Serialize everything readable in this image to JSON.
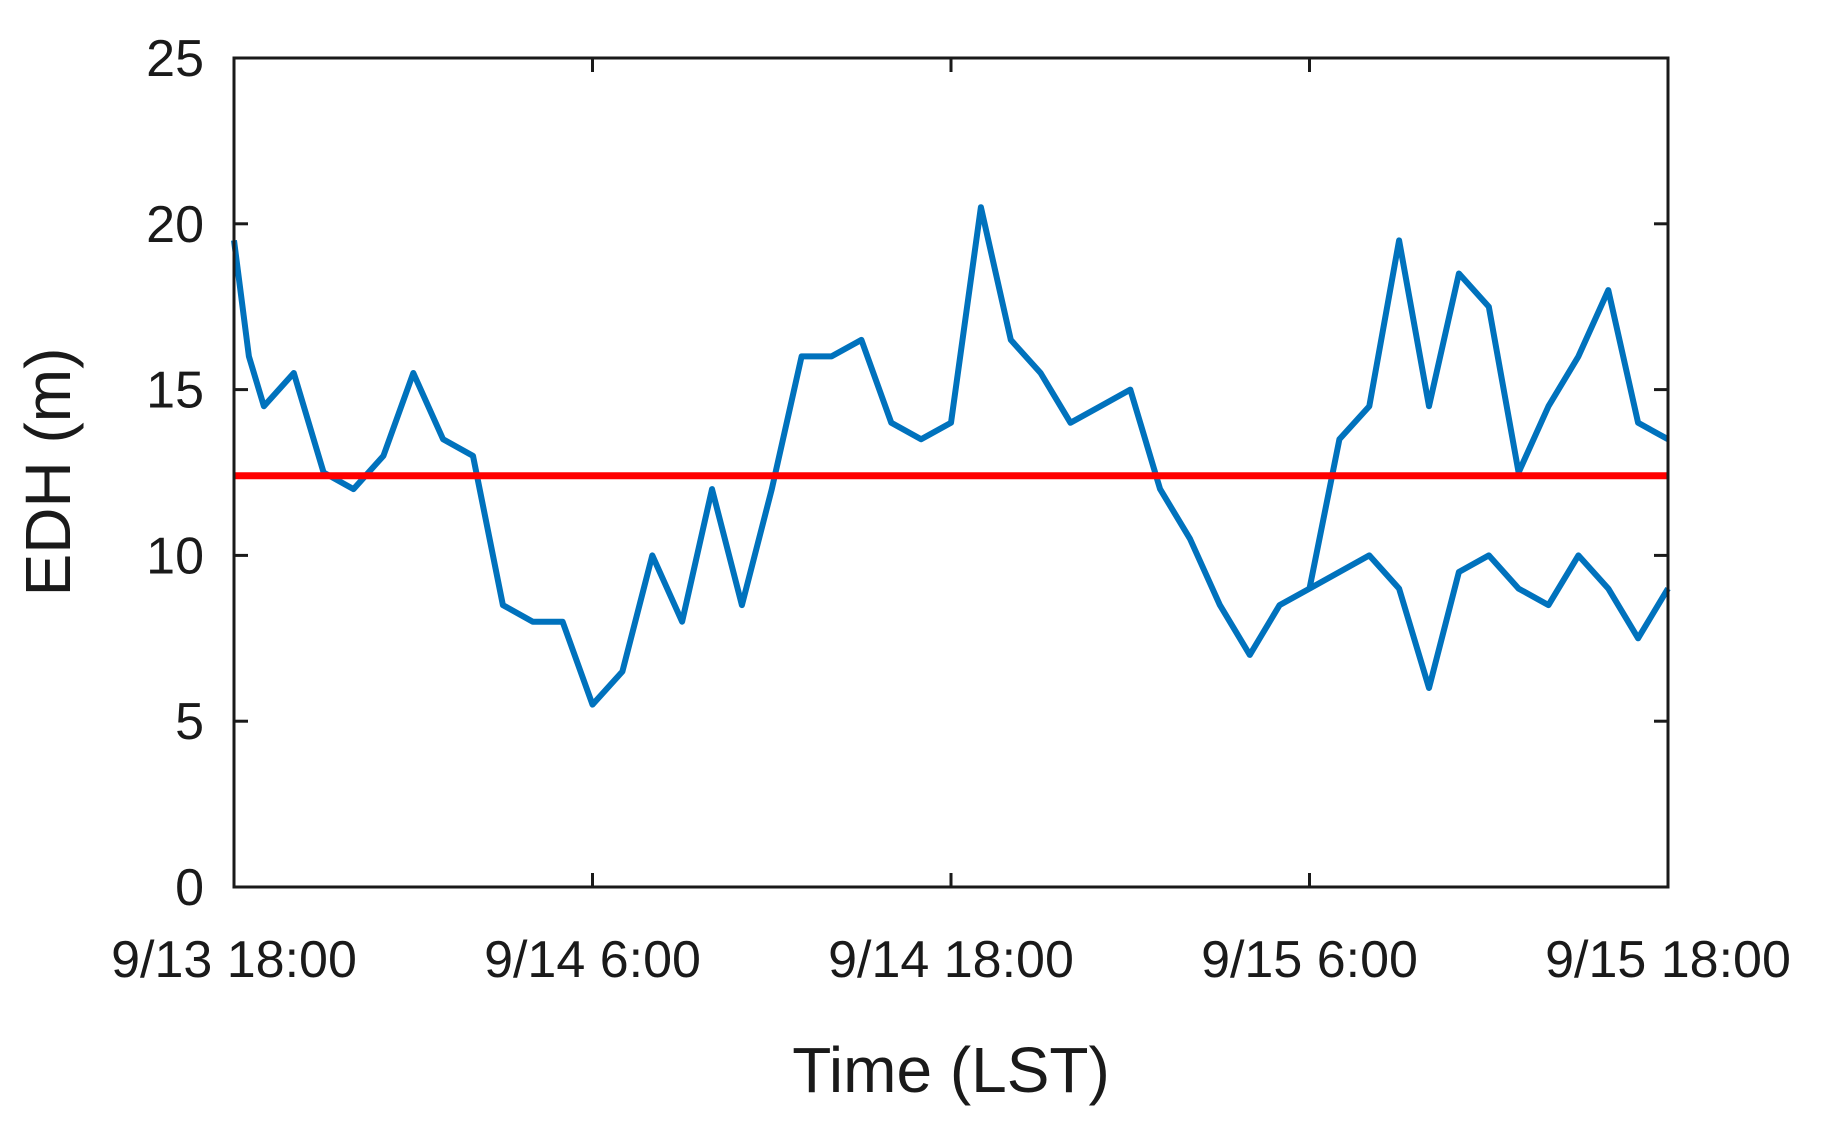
{
  "chart_data": {
    "type": "line",
    "title": "",
    "xlabel": "Time (LST)",
    "ylabel": "EDH (m)",
    "x_type": "datetime",
    "xlim": [
      "2015-09-13 18:00",
      "2015-09-15 18:00"
    ],
    "ylim": [
      0,
      25
    ],
    "x_ticks": [
      {
        "value": "2015-09-13 18:00",
        "label": "9/13 18:00"
      },
      {
        "value": "2015-09-14 06:00",
        "label": "9/14 6:00"
      },
      {
        "value": "2015-09-14 18:00",
        "label": "9/14 18:00"
      },
      {
        "value": "2015-09-15 06:00",
        "label": "9/15 6:00"
      },
      {
        "value": "2015-09-15 18:00",
        "label": "9/15 18:00"
      }
    ],
    "y_ticks": [
      0,
      5,
      10,
      15,
      20,
      25
    ],
    "grid": false,
    "legend": "none",
    "series": [
      {
        "color": "#0072BD",
        "x": [
          "2015-09-13 18:00",
          "2015-09-13 18:30",
          "2015-09-13 19:00",
          "2015-09-13 20:00",
          "2015-09-13 21:00",
          "2015-09-13 22:00",
          "2015-09-13 23:00",
          "2015-09-14 00:00",
          "2015-09-14 01:00",
          "2015-09-14 02:00",
          "2015-09-14 03:00",
          "2015-09-14 04:00",
          "2015-09-14 05:00",
          "2015-09-14 06:00",
          "2015-09-14 07:00",
          "2015-09-14 08:00",
          "2015-09-14 09:00",
          "2015-09-14 10:00",
          "2015-09-14 11:00",
          "2015-09-14 12:00",
          "2015-09-14 13:00",
          "2015-09-14 14:00",
          "2015-09-14 15:00",
          "2015-09-14 16:00",
          "2015-09-14 17:00",
          "2015-09-14 18:00",
          "2015-09-14 19:00",
          "2015-09-14 20:00",
          "2015-09-14 21:00",
          "2015-09-14 22:00",
          "2015-09-14 23:00",
          "2015-09-15 00:00",
          "2015-09-15 01:00",
          "2015-09-15 02:00",
          "2015-09-15 03:00",
          "2015-09-15 04:00",
          "2015-09-15 05:00",
          "2015-09-15 06:00",
          "2015-09-15 07:00",
          "2015-09-15 08:00",
          "2015-09-15 09:00",
          "2015-09-15 10:00",
          "2015-09-15 11:00",
          "2015-09-15 12:00",
          "2015-09-15 13:00",
          "2015-09-15 14:00",
          "2015-09-15 15:00",
          "2015-09-15 16:00",
          "2015-09-15 17:00",
          "2015-09-15 18:00"
        ],
        "y": [
          19.5,
          16.0,
          14.5,
          15.5,
          12.5,
          12.0,
          13.0,
          15.5,
          13.5,
          13.0,
          8.5,
          8.0,
          8.0,
          5.5,
          6.5,
          10.0,
          8.0,
          12.0,
          8.5,
          12.0,
          16.0,
          16.0,
          16.5,
          14.0,
          13.5,
          14.0,
          20.5,
          16.5,
          15.5,
          14.0,
          14.5,
          15.0,
          12.0,
          10.5,
          8.5,
          7.0,
          8.5,
          9.0,
          9.5,
          10.0,
          9.0,
          6.0,
          9.5,
          10.0,
          9.0,
          8.5,
          10.0,
          9.0,
          7.5,
          9.0
        ]
      },
      {
        "color": "#0072BD",
        "x": [
          "2015-09-15 06:00",
          "2015-09-15 07:00",
          "2015-09-15 08:00",
          "2015-09-15 09:00",
          "2015-09-15 10:00",
          "2015-09-15 11:00",
          "2015-09-15 12:00",
          "2015-09-15 13:00",
          "2015-09-15 14:00",
          "2015-09-15 15:00",
          "2015-09-15 16:00",
          "2015-09-15 17:00",
          "2015-09-15 18:00"
        ],
        "y": [
          9.0,
          13.5,
          14.5,
          19.5,
          14.5,
          18.5,
          17.5,
          12.5,
          14.5,
          16.0,
          18.0,
          14.0,
          13.5
        ]
      },
      {
        "color": "#FF0000",
        "x": [
          "2015-09-13 18:00",
          "2015-09-15 18:00"
        ],
        "y": [
          12.4,
          12.4
        ]
      }
    ]
  }
}
